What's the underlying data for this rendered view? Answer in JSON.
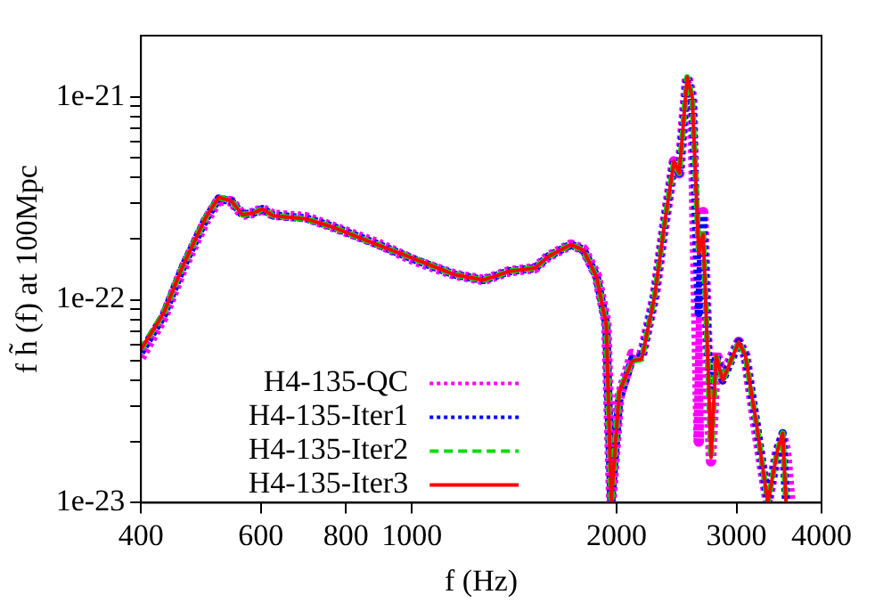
{
  "chart_data": {
    "type": "line",
    "xlabel": "f (Hz)",
    "ylabel": "f h̃ (f) at 100Mpc",
    "log": "xy",
    "grid": false,
    "legend": "bottom left",
    "marker": "none",
    "x": [
      400,
      432,
      461,
      498,
      520,
      543,
      564,
      586,
      603,
      626,
      699,
      762,
      889,
      1013,
      1155,
      1275,
      1390,
      1517,
      1585,
      1713,
      1788,
      1869,
      1931,
      1964,
      2017,
      2108,
      2177,
      2275,
      2352,
      2428,
      2472,
      2539,
      2583,
      2640,
      2680,
      2721,
      2752,
      2800,
      2863,
      3023,
      3092,
      3212,
      3335,
      3445,
      3507,
      3547,
      3600
    ],
    "xlim": [
      400,
      4000
    ],
    "xticks": [
      400,
      600,
      800,
      1000,
      2000,
      3000,
      4000
    ],
    "ylim": [
      1e-23,
      2e-21
    ],
    "yticks": [
      {
        "value": 1e-23,
        "label": "1e-23"
      },
      {
        "value": 2e-23,
        "label": null
      },
      {
        "value": 3e-23,
        "label": null
      },
      {
        "value": 4e-23,
        "label": null
      },
      {
        "value": 5e-23,
        "label": null
      },
      {
        "value": 6e-23,
        "label": null
      },
      {
        "value": 7e-23,
        "label": null
      },
      {
        "value": 8e-23,
        "label": null
      },
      {
        "value": 9e-23,
        "label": null
      },
      {
        "value": 1e-22,
        "label": "1e-22"
      },
      {
        "value": 2e-22,
        "label": null
      },
      {
        "value": 3e-22,
        "label": null
      },
      {
        "value": 4e-22,
        "label": null
      },
      {
        "value": 5e-22,
        "label": null
      },
      {
        "value": 6e-22,
        "label": null
      },
      {
        "value": 7e-22,
        "label": null
      },
      {
        "value": 8e-22,
        "label": null
      },
      {
        "value": 9e-22,
        "label": null
      },
      {
        "value": 1e-21,
        "label": "1e-21"
      }
    ],
    "series": [
      {
        "name": "H4-135-QC",
        "color": "#ff00ff",
        "line_style": "dotted",
        "values": [
          5.2e-23,
          8.2e-23,
          1.42e-22,
          2.45e-22,
          3.1e-22,
          3.05e-22,
          2.62e-22,
          2.68e-22,
          2.8e-22,
          2.62e-22,
          2.55e-22,
          2.3e-22,
          1.9e-22,
          1.55e-22,
          1.33e-22,
          1.25e-22,
          1.38e-22,
          1.43e-22,
          1.63e-22,
          1.87e-22,
          1.77e-22,
          1.32e-22,
          7.8e-23,
          1e-23,
          3.3e-23,
          5.4e-23,
          5.3e-23,
          1.05e-22,
          2.37e-22,
          4.8e-22,
          4.2e-22,
          1.25e-21,
          9.9e-22,
          2e-23,
          2.7e-22,
          5.3e-23,
          1.6e-23,
          5.5e-23,
          4.2e-23,
          6.2e-23,
          5.3e-23,
          2.2e-23,
          1e-23,
          1.8e-23,
          2.1e-23,
          1.8e-23,
          1e-23
        ]
      },
      {
        "name": "H4-135-Iter1",
        "color": "#0000ff",
        "line_style": "dotted",
        "values": [
          5.5e-23,
          8.4e-23,
          1.45e-22,
          2.5e-22,
          3.15e-22,
          3.06e-22,
          2.62e-22,
          2.68e-22,
          2.8e-22,
          2.6e-22,
          2.52e-22,
          2.3e-22,
          1.88e-22,
          1.57e-22,
          1.33e-22,
          1.25e-22,
          1.38e-22,
          1.43e-22,
          1.63e-22,
          1.87e-22,
          1.76e-22,
          1.3e-22,
          7.6e-23,
          1e-23,
          3.2e-23,
          5.1e-23,
          5.2e-23,
          1.05e-22,
          2.37e-22,
          4.8e-22,
          4.2e-22,
          1.25e-21,
          9.9e-22,
          8.6e-23,
          2.6e-22,
          5.8e-23,
          3.5e-23,
          5.3e-23,
          4e-23,
          6.2e-23,
          5.3e-23,
          2.4e-23,
          1e-23,
          1.8e-23,
          2.2e-23,
          1e-23,
          null
        ]
      },
      {
        "name": "H4-135-Iter2",
        "color": "#00dd00",
        "line_style": "dashed",
        "values": [
          5.7e-23,
          8.6e-23,
          1.47e-22,
          2.54e-22,
          3.19e-22,
          3.07e-22,
          2.62e-22,
          2.68e-22,
          2.8e-22,
          2.59e-22,
          2.5e-22,
          2.29e-22,
          1.87e-22,
          1.58e-22,
          1.33e-22,
          1.25e-22,
          1.38e-22,
          1.43e-22,
          1.63e-22,
          1.87e-22,
          1.75e-22,
          1.29e-22,
          7.5e-23,
          1e-23,
          3.5e-23,
          5e-23,
          5.1e-23,
          1.05e-22,
          2.37e-22,
          4.8e-22,
          4.2e-22,
          1.25e-21,
          9.9e-22,
          1.69e-22,
          2.1e-22,
          5.3e-23,
          1.67e-23,
          5.3e-23,
          4e-23,
          6.2e-23,
          5.3e-23,
          2.4e-23,
          1e-23,
          1.8e-23,
          2.2e-23,
          1e-23,
          null
        ]
      },
      {
        "name": "H4-135-Iter3",
        "color": "#ff0000",
        "line_style": "solid",
        "values": [
          5.7e-23,
          8.6e-23,
          1.47e-22,
          2.54e-22,
          3.19e-22,
          3.07e-22,
          2.62e-22,
          2.68e-22,
          2.8e-22,
          2.59e-22,
          2.5e-22,
          2.29e-22,
          1.87e-22,
          1.58e-22,
          1.33e-22,
          1.25e-22,
          1.38e-22,
          1.43e-22,
          1.63e-22,
          1.87e-22,
          1.75e-22,
          1.29e-22,
          7.5e-23,
          1e-23,
          3.5e-23,
          5e-23,
          5.1e-23,
          1.05e-22,
          2.37e-22,
          4.8e-22,
          4.2e-22,
          1.25e-21,
          9.9e-22,
          1.69e-22,
          2.1e-22,
          5.3e-23,
          1.67e-23,
          5.3e-23,
          4e-23,
          6.2e-23,
          5.3e-23,
          2.4e-23,
          1e-23,
          1.8e-23,
          2.2e-23,
          1e-23,
          null
        ]
      }
    ]
  }
}
